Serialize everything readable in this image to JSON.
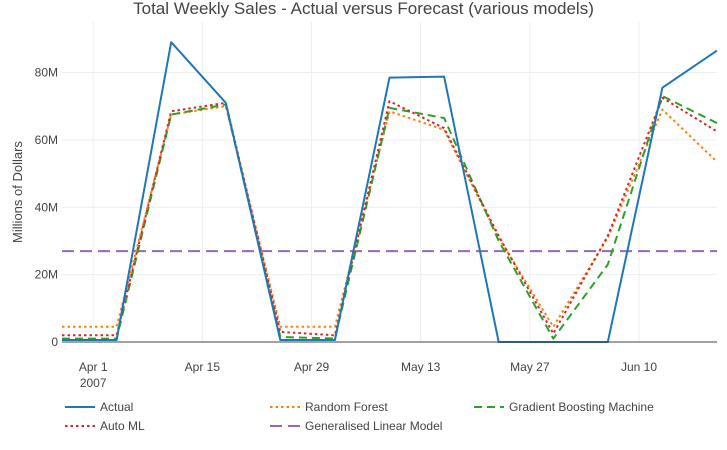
{
  "chart_data": {
    "type": "line",
    "title": "Total Weekly Sales - Actual versus Forecast (various models)",
    "xlabel": "",
    "ylabel": "Millions of Dollars",
    "x": [
      "2007-03-28",
      "2007-04-04",
      "2007-04-11",
      "2007-04-18",
      "2007-04-25",
      "2007-05-02",
      "2007-05-09",
      "2007-05-16",
      "2007-05-23",
      "2007-05-30",
      "2007-06-06",
      "2007-06-13",
      "2007-06-20"
    ],
    "x_ticks": [
      {
        "date": "2007-04-01",
        "label": "Apr 1",
        "sublabel": "2007"
      },
      {
        "date": "2007-04-15",
        "label": "Apr 15"
      },
      {
        "date": "2007-04-29",
        "label": "Apr 29"
      },
      {
        "date": "2007-05-13",
        "label": "May 13"
      },
      {
        "date": "2007-05-27",
        "label": "May 27"
      },
      {
        "date": "2007-06-10",
        "label": "Jun 10"
      }
    ],
    "y_ticks": [
      {
        "value": 0,
        "label": "0"
      },
      {
        "value": 20000000,
        "label": "20M"
      },
      {
        "value": 40000000,
        "label": "40M"
      },
      {
        "value": 60000000,
        "label": "60M"
      },
      {
        "value": 80000000,
        "label": "80M"
      }
    ],
    "xlim": [
      "2007-03-28",
      "2007-06-20"
    ],
    "ylim": [
      0,
      95000000
    ],
    "grid": true,
    "legend_position": "bottom",
    "series": [
      {
        "name": "Actual",
        "color": "#1f77b4",
        "dash": "solid",
        "values": [
          600000,
          600000,
          89000000,
          71000000,
          600000,
          600000,
          78500000,
          78800000,
          0,
          0,
          0,
          75500000,
          86500000
        ]
      },
      {
        "name": "Random Forest",
        "color": "#ff7f0e",
        "dash": "dot",
        "values": [
          4500000,
          4500000,
          67500000,
          70000000,
          4500000,
          4500000,
          68500000,
          63000000,
          31000000,
          4500000,
          31000000,
          69000000,
          53500000
        ]
      },
      {
        "name": "Gradient Boosting Machine",
        "color": "#2ca02c",
        "dash": "dash",
        "values": [
          1000000,
          1000000,
          67500000,
          70500000,
          1500000,
          1000000,
          69500000,
          66500000,
          30000000,
          1000000,
          23000000,
          73000000,
          65000000
        ]
      },
      {
        "name": "Auto ML",
        "color": "#d62728",
        "dash": "dot",
        "values": [
          2000000,
          2000000,
          68500000,
          71000000,
          3000000,
          2000000,
          71500000,
          63500000,
          31500000,
          2500000,
          31500000,
          72500000,
          62500000
        ]
      },
      {
        "name": "Generalised Linear Model",
        "color": "#9467bd",
        "dash": "longdash",
        "values": [
          27000000,
          27000000,
          27000000,
          27000000,
          27000000,
          27000000,
          27000000,
          27000000,
          27000000,
          27000000,
          27000000,
          27000000,
          27000000
        ]
      }
    ],
    "legend_order": [
      "Actual",
      "Random Forest",
      "Gradient Boosting Machine",
      "Auto ML",
      "Generalised Linear Model"
    ]
  }
}
